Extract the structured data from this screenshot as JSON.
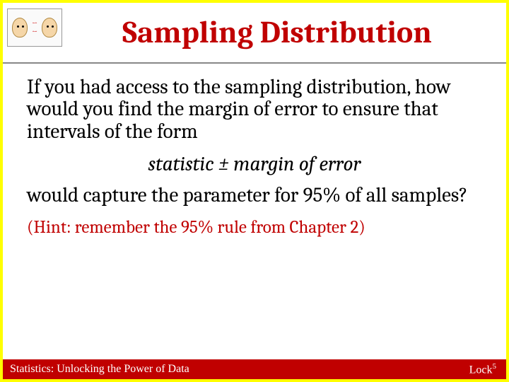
{
  "colors": {
    "border": "#ffff00",
    "accent": "#c00000",
    "text": "#000000",
    "footer_bg": "#c00000",
    "footer_text": "#ffffff",
    "background": "#ffffff"
  },
  "header": {
    "title": "Sampling Distribution",
    "logo_alt": "two-heads-arrows-icon"
  },
  "body": {
    "para1": "If you had access to the sampling distribution, how would you find the margin of error to ensure that intervals of the form",
    "formula": "statistic ± margin of error",
    "para2": "would capture the parameter for 95% of all samples?",
    "hint": "(Hint: remember the 95% rule from Chapter 2)"
  },
  "footer": {
    "left": "Statistics: Unlocking the Power of Data",
    "right_base": "Lock",
    "right_sup": "5"
  },
  "typography": {
    "title_fontsize": 44,
    "body_fontsize": 29,
    "hint_fontsize": 25,
    "footer_fontsize": 16,
    "font_family": "Cambria/serif"
  }
}
